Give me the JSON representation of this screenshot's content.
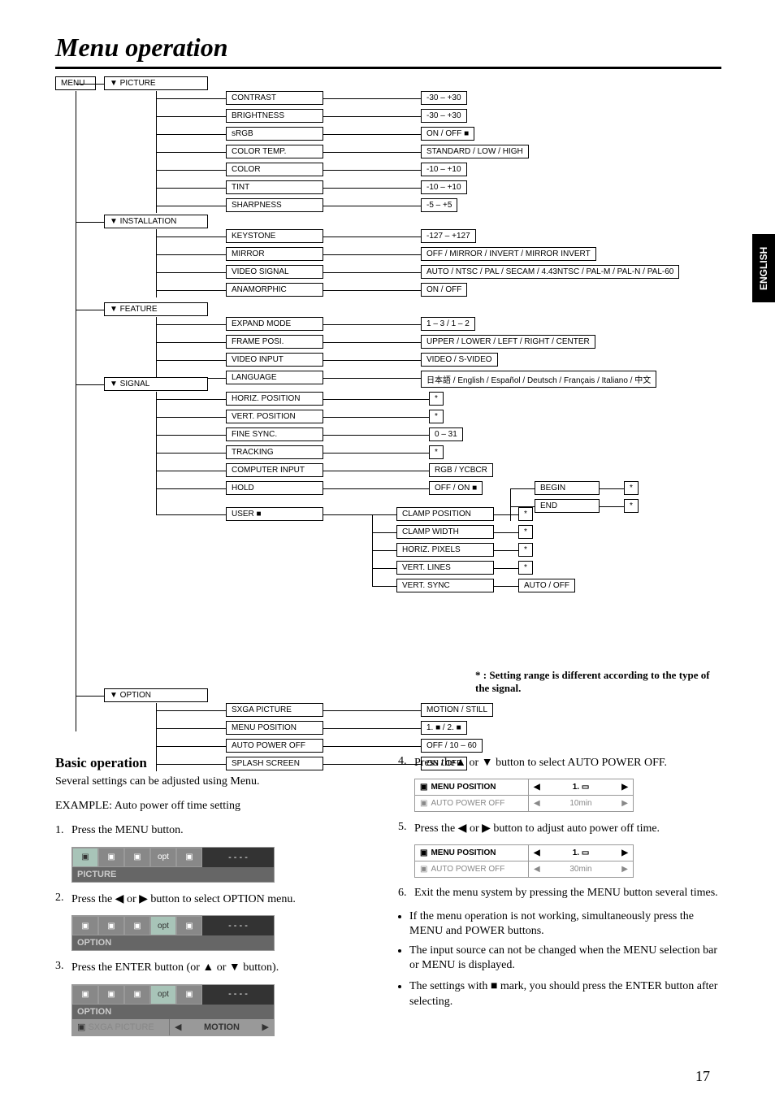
{
  "page": {
    "title": "Menu operation",
    "number": "17",
    "side_tab": "ENGLISH"
  },
  "diagram": {
    "root": "MENU",
    "arrow_down": "▼",
    "footnote": "* : Setting range is different according to the type of the signal.",
    "groups": [
      {
        "name": "PICTURE",
        "items": [
          {
            "l": "CONTRAST",
            "r": "-30 – +30"
          },
          {
            "l": "BRIGHTNESS",
            "r": "-30 – +30"
          },
          {
            "l": "sRGB",
            "r": "ON / OFF ■"
          },
          {
            "l": "COLOR TEMP.",
            "r": "STANDARD / LOW / HIGH"
          },
          {
            "l": "COLOR",
            "r": "-10 – +10"
          },
          {
            "l": "TINT",
            "r": "-10 – +10"
          },
          {
            "l": "SHARPNESS",
            "r": "-5 – +5"
          }
        ]
      },
      {
        "name": "INSTALLATION",
        "items": [
          {
            "l": "KEYSTONE",
            "r": "-127 – +127"
          },
          {
            "l": "MIRROR",
            "r": "OFF / MIRROR / INVERT / MIRROR INVERT"
          },
          {
            "l": "VIDEO SIGNAL",
            "r": "AUTO / NTSC / PAL / SECAM / 4.43NTSC / PAL-M / PAL-N / PAL-60"
          },
          {
            "l": "ANAMORPHIC",
            "r": "ON / OFF"
          }
        ]
      },
      {
        "name": "FEATURE",
        "items": [
          {
            "l": "EXPAND MODE",
            "r": "1 – 3 / 1 – 2"
          },
          {
            "l": "FRAME POSI.",
            "r": "UPPER / LOWER / LEFT / RIGHT / CENTER"
          },
          {
            "l": "VIDEO INPUT",
            "r": "VIDEO / S-VIDEO"
          },
          {
            "l": "LANGUAGE",
            "r": "日本語 / English / Español / Deutsch / Français / Italiano / 中文"
          }
        ]
      },
      {
        "name": "SIGNAL",
        "sub1": [
          {
            "l": "HORIZ. POSITION",
            "r": "*"
          },
          {
            "l": "VERT. POSITION",
            "r": "*"
          },
          {
            "l": "FINE SYNC.",
            "r": "0 – 31"
          },
          {
            "l": "TRACKING",
            "r": "*"
          },
          {
            "l": "COMPUTER INPUT",
            "r": "RGB / YCBCR"
          },
          {
            "l": "HOLD",
            "r": "OFF / ON ■"
          }
        ],
        "hold": [
          {
            "l": "BEGIN",
            "r": "*"
          },
          {
            "l": "END",
            "r": "*"
          }
        ],
        "user": {
          "label": "USER ■",
          "items": [
            {
              "l": "CLAMP POSITION",
              "r": "*"
            },
            {
              "l": "CLAMP WIDTH",
              "r": "*"
            },
            {
              "l": "HORIZ. PIXELS",
              "r": "*"
            },
            {
              "l": "VERT. LINES",
              "r": "*"
            },
            {
              "l": "VERT. SYNC",
              "r": "AUTO / OFF"
            }
          ]
        }
      },
      {
        "name": "OPTION",
        "items": [
          {
            "l": "SXGA PICTURE",
            "r": "MOTION / STILL"
          },
          {
            "l": "MENU POSITION",
            "r": "1. ■ / 2. ■"
          },
          {
            "l": "AUTO POWER OFF",
            "r": "OFF / 10 – 60"
          },
          {
            "l": "SPLASH SCREEN",
            "r": "ON / OFF"
          }
        ]
      }
    ]
  },
  "basic": {
    "heading": "Basic operation",
    "intro": "Several settings can be adjusted using Menu.",
    "example": "EXAMPLE: Auto power off time setting",
    "step1": "Press the MENU button.",
    "menu1_label": "PICTURE",
    "step2_a": "Press the ",
    "step2_b": " or ",
    "step2_c": " button to select OPTION menu.",
    "menu2_label": "OPTION",
    "step3_a": "Press the ENTER button (or ",
    "step3_b": " or ",
    "step3_c": " button).",
    "menu3_label": "OPTION",
    "menu3_row1_l": "SXGA PICTURE",
    "menu3_row1_r": "MOTION",
    "step4_a": "Press the",
    "step4_b": " or ",
    "step4_c": " button to select AUTO POWER OFF.",
    "opt1_r1_l": "MENU POSITION",
    "opt1_r1_r": "1.",
    "opt1_r2_l": "AUTO POWER OFF",
    "opt1_r2_r": "10min",
    "step5_a": "Press the ",
    "step5_b": " or ",
    "step5_c": " button to adjust auto power off time.",
    "opt2_r1_l": "MENU POSITION",
    "opt2_r1_r": "1.",
    "opt2_r2_l": "AUTO POWER OFF",
    "opt2_r2_r": "30min",
    "step6": "Exit the menu system by pressing the MENU button several times.",
    "b1": "If the menu operation is not working, simultaneously press the MENU and POWER buttons.",
    "b2": "The input source can not be changed when the MENU selection bar or MENU is displayed.",
    "b3_a": "The settings with ",
    "b3_b": " mark, you should press the ENTER button after selecting."
  },
  "tri": {
    "l": "◀",
    "r": "▶",
    "u": "▲",
    "d": "▼",
    "sq": "■"
  }
}
